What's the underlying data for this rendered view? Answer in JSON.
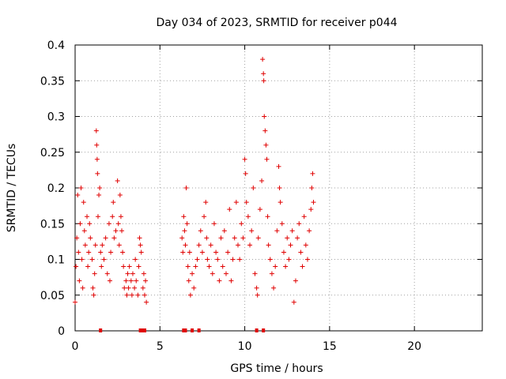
{
  "chart_data": {
    "type": "scatter",
    "title": "Day 034 of 2023, SRMTID for receiver p044",
    "xlabel": "GPS time / hours",
    "ylabel": "SRMTID / TECUs",
    "xlim": [
      0,
      24
    ],
    "ylim": [
      0,
      0.4
    ],
    "x_ticks": [
      0,
      5,
      10,
      15,
      20
    ],
    "x_tick_labels": [
      "0",
      "5",
      "10",
      "15",
      "20"
    ],
    "y_ticks": [
      0,
      0.05,
      0.1,
      0.15,
      0.2,
      0.25,
      0.3,
      0.35,
      0.4
    ],
    "y_tick_labels": [
      "0",
      "0.05",
      "0.1",
      "0.15",
      "0.2",
      "0.25",
      "0.3",
      "0.35",
      "0.4"
    ],
    "grid": true,
    "marker": "plus",
    "series_color": "#e00000",
    "series": [
      {
        "name": "SRMTID",
        "points": [
          [
            0.0,
            0.04
          ],
          [
            0.05,
            0.09
          ],
          [
            0.1,
            0.13
          ],
          [
            0.15,
            0.19
          ],
          [
            0.2,
            0.11
          ],
          [
            0.25,
            0.07
          ],
          [
            0.3,
            0.15
          ],
          [
            0.35,
            0.2
          ],
          [
            0.4,
            0.1
          ],
          [
            0.45,
            0.06
          ],
          [
            0.5,
            0.18
          ],
          [
            0.55,
            0.14
          ],
          [
            0.6,
            0.12
          ],
          [
            0.7,
            0.16
          ],
          [
            0.75,
            0.09
          ],
          [
            0.8,
            0.11
          ],
          [
            0.85,
            0.15
          ],
          [
            0.9,
            0.13
          ],
          [
            1.0,
            0.1
          ],
          [
            1.05,
            0.06
          ],
          [
            1.1,
            0.05
          ],
          [
            1.15,
            0.08
          ],
          [
            1.2,
            0.12
          ],
          [
            1.25,
            0.28
          ],
          [
            1.27,
            0.26
          ],
          [
            1.3,
            0.24
          ],
          [
            1.32,
            0.22
          ],
          [
            1.35,
            0.16
          ],
          [
            1.4,
            0.19
          ],
          [
            1.45,
            0.2
          ],
          [
            1.5,
            0.11
          ],
          [
            1.55,
            0.09
          ],
          [
            1.6,
            0.12
          ],
          [
            1.7,
            0.1
          ],
          [
            1.8,
            0.13
          ],
          [
            1.9,
            0.08
          ],
          [
            2.0,
            0.15
          ],
          [
            2.05,
            0.07
          ],
          [
            2.1,
            0.11
          ],
          [
            2.2,
            0.16
          ],
          [
            2.25,
            0.18
          ],
          [
            2.3,
            0.13
          ],
          [
            2.4,
            0.14
          ],
          [
            2.5,
            0.21
          ],
          [
            2.55,
            0.15
          ],
          [
            2.6,
            0.12
          ],
          [
            2.65,
            0.19
          ],
          [
            2.7,
            0.16
          ],
          [
            2.75,
            0.14
          ],
          [
            2.8,
            0.11
          ],
          [
            2.85,
            0.09
          ],
          [
            2.9,
            0.06
          ],
          [
            3.0,
            0.07
          ],
          [
            3.05,
            0.05
          ],
          [
            3.1,
            0.08
          ],
          [
            3.15,
            0.06
          ],
          [
            3.2,
            0.09
          ],
          [
            3.3,
            0.07
          ],
          [
            3.35,
            0.05
          ],
          [
            3.4,
            0.08
          ],
          [
            3.5,
            0.06
          ],
          [
            3.55,
            0.1
          ],
          [
            3.6,
            0.07
          ],
          [
            3.7,
            0.05
          ],
          [
            3.75,
            0.09
          ],
          [
            3.8,
            0.13
          ],
          [
            3.85,
            0.12
          ],
          [
            3.9,
            0.11
          ],
          [
            4.0,
            0.06
          ],
          [
            4.05,
            0.08
          ],
          [
            4.1,
            0.05
          ],
          [
            4.15,
            0.07
          ],
          [
            4.2,
            0.04
          ],
          [
            6.3,
            0.13
          ],
          [
            6.35,
            0.11
          ],
          [
            6.4,
            0.16
          ],
          [
            6.45,
            0.14
          ],
          [
            6.5,
            0.12
          ],
          [
            6.55,
            0.2
          ],
          [
            6.6,
            0.15
          ],
          [
            6.65,
            0.09
          ],
          [
            6.7,
            0.07
          ],
          [
            6.75,
            0.11
          ],
          [
            6.8,
            0.05
          ],
          [
            6.9,
            0.08
          ],
          [
            7.0,
            0.06
          ],
          [
            7.1,
            0.09
          ],
          [
            7.2,
            0.1
          ],
          [
            7.3,
            0.12
          ],
          [
            7.4,
            0.14
          ],
          [
            7.5,
            0.11
          ],
          [
            7.6,
            0.16
          ],
          [
            7.7,
            0.18
          ],
          [
            7.75,
            0.13
          ],
          [
            7.8,
            0.1
          ],
          [
            7.9,
            0.09
          ],
          [
            8.0,
            0.12
          ],
          [
            8.1,
            0.08
          ],
          [
            8.2,
            0.15
          ],
          [
            8.3,
            0.11
          ],
          [
            8.4,
            0.1
          ],
          [
            8.5,
            0.07
          ],
          [
            8.6,
            0.13
          ],
          [
            8.7,
            0.09
          ],
          [
            8.8,
            0.14
          ],
          [
            8.9,
            0.08
          ],
          [
            9.0,
            0.11
          ],
          [
            9.1,
            0.17
          ],
          [
            9.2,
            0.07
          ],
          [
            9.3,
            0.1
          ],
          [
            9.4,
            0.13
          ],
          [
            9.5,
            0.18
          ],
          [
            9.6,
            0.12
          ],
          [
            9.7,
            0.1
          ],
          [
            9.8,
            0.15
          ],
          [
            9.9,
            0.13
          ],
          [
            10.0,
            0.24
          ],
          [
            10.05,
            0.22
          ],
          [
            10.1,
            0.18
          ],
          [
            10.2,
            0.16
          ],
          [
            10.3,
            0.12
          ],
          [
            10.4,
            0.14
          ],
          [
            10.5,
            0.2
          ],
          [
            10.6,
            0.08
          ],
          [
            10.7,
            0.06
          ],
          [
            10.75,
            0.05
          ],
          [
            10.8,
            0.13
          ],
          [
            10.9,
            0.17
          ],
          [
            11.0,
            0.21
          ],
          [
            11.05,
            0.38
          ],
          [
            11.1,
            0.36
          ],
          [
            11.12,
            0.35
          ],
          [
            11.15,
            0.3
          ],
          [
            11.2,
            0.28
          ],
          [
            11.25,
            0.26
          ],
          [
            11.3,
            0.24
          ],
          [
            11.35,
            0.16
          ],
          [
            11.4,
            0.12
          ],
          [
            11.5,
            0.1
          ],
          [
            11.6,
            0.08
          ],
          [
            11.7,
            0.06
          ],
          [
            11.8,
            0.09
          ],
          [
            11.9,
            0.14
          ],
          [
            12.0,
            0.23
          ],
          [
            12.05,
            0.2
          ],
          [
            12.1,
            0.18
          ],
          [
            12.2,
            0.15
          ],
          [
            12.3,
            0.11
          ],
          [
            12.4,
            0.09
          ],
          [
            12.5,
            0.13
          ],
          [
            12.6,
            0.1
          ],
          [
            12.7,
            0.12
          ],
          [
            12.8,
            0.14
          ],
          [
            12.9,
            0.04
          ],
          [
            13.0,
            0.07
          ],
          [
            13.1,
            0.13
          ],
          [
            13.2,
            0.15
          ],
          [
            13.3,
            0.11
          ],
          [
            13.4,
            0.09
          ],
          [
            13.5,
            0.16
          ],
          [
            13.6,
            0.12
          ],
          [
            13.7,
            0.1
          ],
          [
            13.8,
            0.14
          ],
          [
            13.9,
            0.17
          ],
          [
            13.95,
            0.2
          ],
          [
            14.0,
            0.22
          ],
          [
            14.05,
            0.18
          ]
        ]
      }
    ],
    "baseline_markers": {
      "name": "zero-value points",
      "x": [
        1.5,
        3.85,
        4.0,
        4.1,
        6.4,
        6.5,
        6.9,
        7.3,
        10.7,
        11.1
      ]
    }
  }
}
